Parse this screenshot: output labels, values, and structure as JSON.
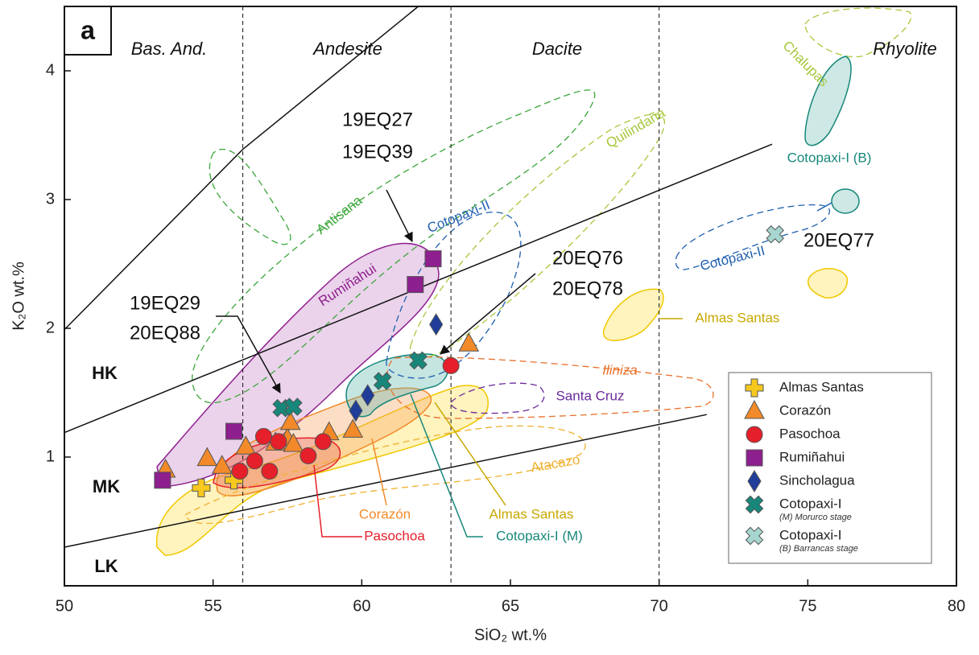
{
  "chart_data": {
    "type": "scatter",
    "x_label": "SiO₂ wt.%",
    "y_label": "K₂O wt.%",
    "xlim": [
      50,
      80
    ],
    "ylim": [
      0,
      4.5
    ],
    "xticks": [
      50,
      55,
      60,
      65,
      70,
      75,
      80
    ],
    "yticks": [
      1,
      2,
      3,
      4
    ],
    "panel_label": "a",
    "zones": [
      "Bas. And.",
      "Andesite",
      "Dacite",
      "Rhyolite"
    ],
    "k_classes": [
      "HK",
      "MK",
      "LK"
    ],
    "dividers": [
      56,
      63,
      70
    ],
    "boundaries": [
      {
        "x": [
          50,
          71.6
        ],
        "y": [
          0.3,
          1.33
        ]
      },
      {
        "x": [
          50,
          73.8
        ],
        "y": [
          1.19,
          3.43
        ]
      },
      {
        "x": [
          50,
          56,
          61.9
        ],
        "y": [
          1.99,
          3.39,
          4.5
        ]
      }
    ],
    "fields": [
      "Antisana",
      "Cotopaxi-II",
      "Quilindaña",
      "Chalupas",
      "Rumiñahui",
      "Cotopaxi-I (B)",
      "Cotopaxi-II",
      "Almas Santas",
      "Iliniza",
      "Santa Cruz",
      "Atacazo",
      "Corazón",
      "Pasochoa",
      "Almas Santas",
      "Cotopaxi-I (M)"
    ],
    "samples": [
      "19EQ27",
      "19EQ39",
      "20EQ76",
      "20EQ78",
      "19EQ29",
      "20EQ88",
      "20EQ77"
    ],
    "series": [
      {
        "name": "Almas Santas",
        "marker": "plus",
        "color": "#f7c81e",
        "x": [
          54.6,
          55.7
        ],
        "values": [
          0.76,
          0.82
        ]
      },
      {
        "name": "Corazón",
        "marker": "triangle",
        "color": "#f28a2a",
        "x": [
          53.4,
          54.8,
          55.3,
          56.1,
          57.1,
          57.5,
          57.6,
          57.7,
          58.9,
          59.7,
          63.6
        ],
        "values": [
          0.9,
          0.99,
          0.93,
          1.08,
          1.11,
          1.14,
          1.27,
          1.1,
          1.19,
          1.21,
          1.88
        ]
      },
      {
        "name": "Pasochoa",
        "marker": "circle",
        "color": "#e5202a",
        "x": [
          55.9,
          56.4,
          56.7,
          56.9,
          57.2,
          58.2,
          58.7,
          63.0
        ],
        "values": [
          0.89,
          0.97,
          1.16,
          0.89,
          1.12,
          1.01,
          1.12,
          1.71
        ]
      },
      {
        "name": "Rumiñahui",
        "marker": "square",
        "color": "#8e1f8e",
        "x": [
          53.3,
          55.7,
          61.8,
          62.4
        ],
        "values": [
          0.82,
          1.2,
          2.34,
          2.54
        ]
      },
      {
        "name": "Sincholagua",
        "marker": "diamond",
        "color": "#1f3d99",
        "x": [
          59.8,
          60.2,
          62.5
        ],
        "values": [
          1.36,
          1.48,
          2.03
        ]
      },
      {
        "name": "Cotopaxi-I",
        "stage": "(M) Morurco stage",
        "marker": "x",
        "color": "#17877a",
        "x": [
          57.3,
          57.7,
          60.7,
          61.9
        ],
        "values": [
          1.38,
          1.39,
          1.59,
          1.75
        ]
      },
      {
        "name": "Cotopaxi-I",
        "stage": "(B) Barrancas stage",
        "marker": "x",
        "color": "#a6d6cf",
        "x": [
          73.9
        ],
        "values": [
          2.73
        ]
      }
    ]
  }
}
